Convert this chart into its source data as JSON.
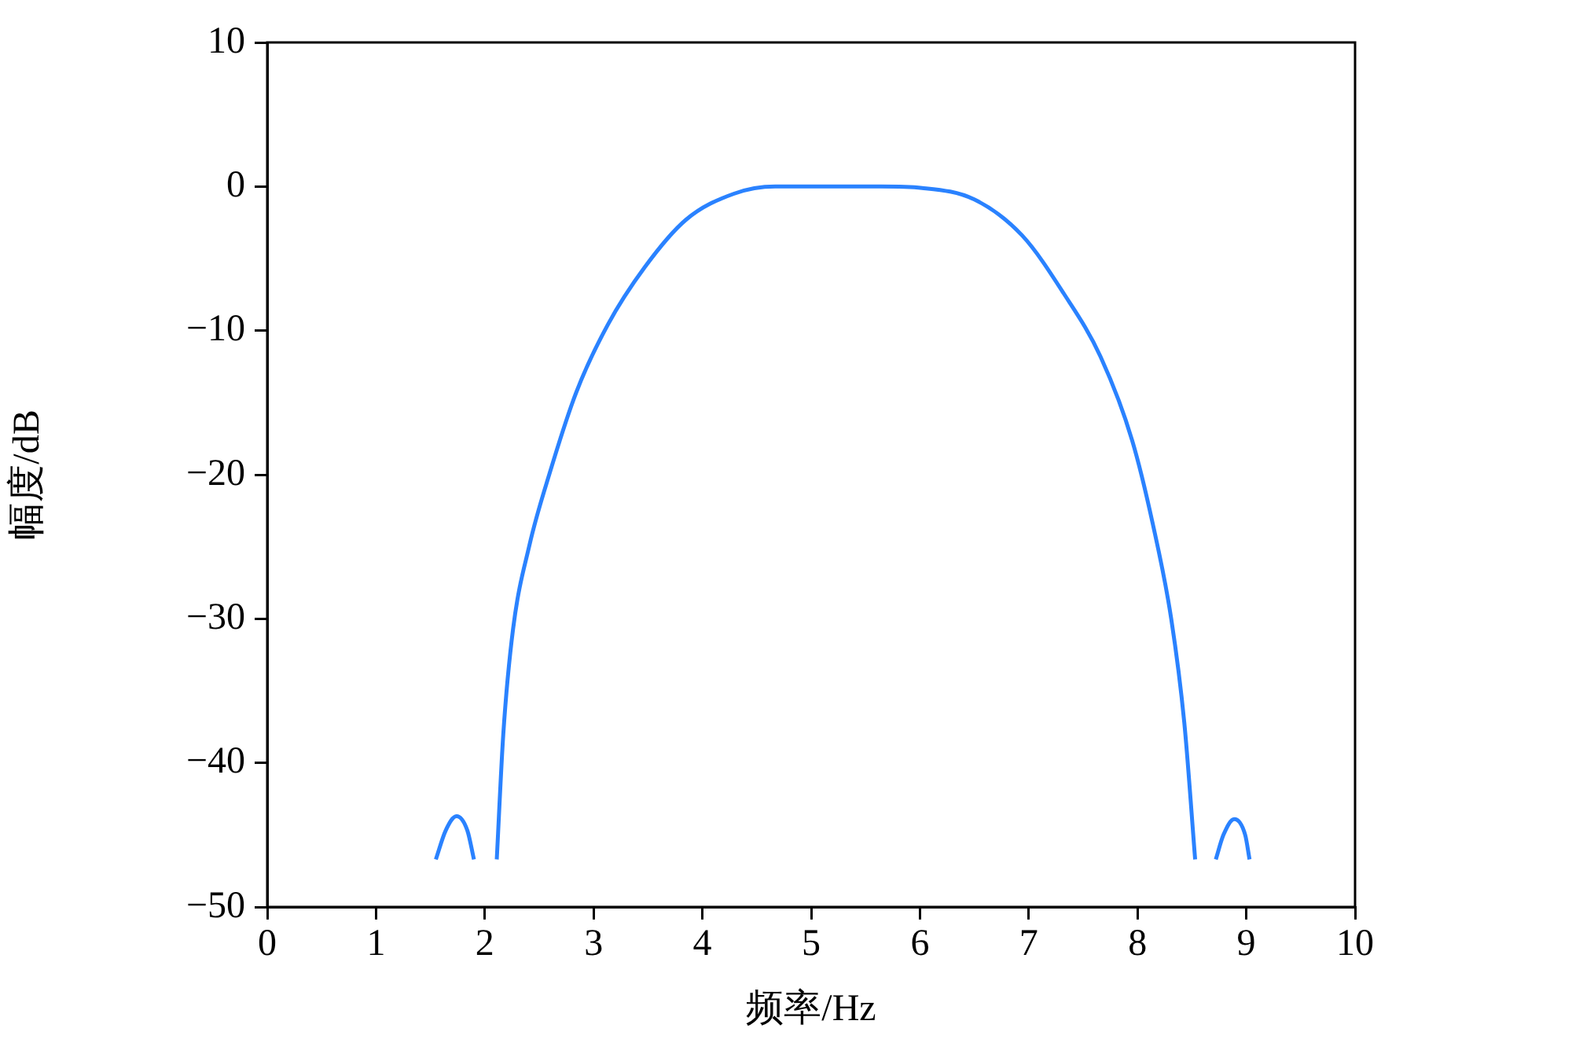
{
  "chart_data": {
    "type": "line",
    "xlabel": "频率/Hz",
    "ylabel": "幅度/dB",
    "xlim": [
      0,
      10
    ],
    "xticks": [
      0,
      1,
      2,
      3,
      4,
      5,
      6,
      7,
      8,
      9,
      10
    ],
    "ylim": [
      -50,
      10
    ],
    "yticks": [
      -50,
      -40,
      -30,
      -20,
      -10,
      0,
      10
    ],
    "grid": false,
    "legend": false,
    "marker": "none",
    "line_style": "solid",
    "series": [
      {
        "color": "#2a82ff",
        "x": [
          1.55,
          1.64,
          1.74,
          1.84,
          1.9
        ],
        "values": [
          -46.7,
          -44.7,
          -43.7,
          -44.7,
          -46.7
        ]
      },
      {
        "color": "#2a82ff",
        "x": [
          2.11,
          2.17,
          2.26,
          2.41,
          2.6,
          2.84,
          3.13,
          3.47,
          3.85,
          4.29,
          4.67,
          5.06,
          5.64,
          6.02,
          6.5,
          6.94,
          7.32,
          7.66,
          7.95,
          8.14,
          8.31,
          8.43,
          8.53
        ],
        "values": [
          -46.7,
          -38,
          -30.7,
          -24.9,
          -19.8,
          -14.3,
          -9.6,
          -5.6,
          -2.3,
          -0.5,
          0,
          0,
          0,
          -0.1,
          -0.9,
          -3.4,
          -7.4,
          -11.8,
          -17.6,
          -23.4,
          -30,
          -37.2,
          -46.7
        ]
      },
      {
        "color": "#2a82ff",
        "x": [
          8.72,
          8.79,
          8.89,
          8.99,
          9.03
        ],
        "values": [
          -46.7,
          -45,
          -43.9,
          -45,
          -46.7
        ]
      }
    ]
  }
}
